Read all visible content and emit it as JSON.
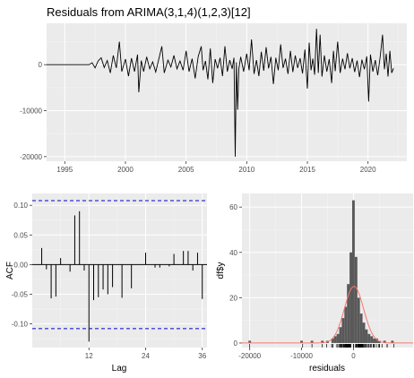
{
  "chart_data": [
    {
      "type": "line",
      "title": "Residuals from ARIMA(3,1,4)(1,2,3)[12]",
      "xlabel": "",
      "ylabel": "",
      "xlim": [
        1993.5,
        2023.2
      ],
      "ylim": [
        -21000,
        9000
      ],
      "x_ticks": [
        "1995",
        "2000",
        "2005",
        "2010",
        "2015",
        "2020"
      ],
      "y_ticks": [
        "-20000",
        "-10000",
        "0"
      ],
      "grid": true,
      "start_year": 1993.5,
      "points": [
        [
          1993.5,
          0
        ],
        [
          1997.0,
          0
        ],
        [
          1997.25,
          400
        ],
        [
          1997.5,
          -700
        ],
        [
          1997.75,
          800
        ],
        [
          1998.0,
          1500
        ],
        [
          1998.25,
          -600
        ],
        [
          1998.5,
          900
        ],
        [
          1998.75,
          -1800
        ],
        [
          1999.0,
          2000
        ],
        [
          1999.25,
          -700
        ],
        [
          1999.5,
          5000
        ],
        [
          1999.7,
          -1500
        ],
        [
          2000.0,
          1200
        ],
        [
          2000.25,
          -2500
        ],
        [
          2000.5,
          1400
        ],
        [
          2000.75,
          -1500
        ],
        [
          2001.0,
          2200
        ],
        [
          2001.1,
          -6000
        ],
        [
          2001.3,
          900
        ],
        [
          2001.5,
          -1500
        ],
        [
          2001.75,
          1700
        ],
        [
          2002.0,
          -900
        ],
        [
          2002.25,
          600
        ],
        [
          2002.5,
          -1600
        ],
        [
          2002.75,
          1200
        ],
        [
          2003.0,
          4000
        ],
        [
          2003.2,
          -1800
        ],
        [
          2003.5,
          1000
        ],
        [
          2003.75,
          -500
        ],
        [
          2004.0,
          2000
        ],
        [
          2004.25,
          -900
        ],
        [
          2004.5,
          800
        ],
        [
          2004.75,
          -1200
        ],
        [
          2005.0,
          3000
        ],
        [
          2005.25,
          -1500
        ],
        [
          2005.5,
          1300
        ],
        [
          2005.75,
          -3000
        ],
        [
          2006.0,
          1800
        ],
        [
          2006.25,
          4000
        ],
        [
          2006.4,
          -1200
        ],
        [
          2006.6,
          800
        ],
        [
          2006.8,
          -3200
        ],
        [
          2007.0,
          3500
        ],
        [
          2007.2,
          -4000
        ],
        [
          2007.4,
          1200
        ],
        [
          2007.6,
          -800
        ],
        [
          2007.8,
          1500
        ],
        [
          2008.0,
          -2500
        ],
        [
          2008.2,
          4000
        ],
        [
          2008.4,
          -1500
        ],
        [
          2008.6,
          1000
        ],
        [
          2008.8,
          -900
        ],
        [
          2008.95,
          1500
        ],
        [
          2009.05,
          -20000
        ],
        [
          2009.15,
          500
        ],
        [
          2009.25,
          -9800
        ],
        [
          2009.35,
          -1000
        ],
        [
          2009.5,
          1700
        ],
        [
          2009.75,
          -1500
        ],
        [
          2010.0,
          2400
        ],
        [
          2010.2,
          -1200
        ],
        [
          2010.4,
          5500
        ],
        [
          2010.6,
          -2000
        ],
        [
          2010.8,
          1000
        ],
        [
          2011.0,
          -2500
        ],
        [
          2011.2,
          2800
        ],
        [
          2011.4,
          -1300
        ],
        [
          2011.6,
          3800
        ],
        [
          2011.8,
          -800
        ],
        [
          2012.0,
          1700
        ],
        [
          2012.2,
          -4200
        ],
        [
          2012.4,
          1500
        ],
        [
          2012.6,
          -1200
        ],
        [
          2012.8,
          4400
        ],
        [
          2013.0,
          -700
        ],
        [
          2013.2,
          1300
        ],
        [
          2013.4,
          -2000
        ],
        [
          2013.6,
          3000
        ],
        [
          2013.8,
          -1600
        ],
        [
          2014.0,
          2000
        ],
        [
          2014.2,
          -700
        ],
        [
          2014.4,
          1400
        ],
        [
          2014.6,
          -1900
        ],
        [
          2014.8,
          3300
        ],
        [
          2015.0,
          -5200
        ],
        [
          2015.15,
          4800
        ],
        [
          2015.3,
          -1200
        ],
        [
          2015.45,
          1300
        ],
        [
          2015.6,
          -2200
        ],
        [
          2015.75,
          7800
        ],
        [
          2015.9,
          -1800
        ],
        [
          2016.05,
          6500
        ],
        [
          2016.2,
          -2600
        ],
        [
          2016.4,
          2000
        ],
        [
          2016.6,
          -1500
        ],
        [
          2016.8,
          1200
        ],
        [
          2017.0,
          -4000
        ],
        [
          2017.15,
          3000
        ],
        [
          2017.3,
          -1400
        ],
        [
          2017.5,
          5000
        ],
        [
          2017.7,
          -1800
        ],
        [
          2017.9,
          1300
        ],
        [
          2018.1,
          -1000
        ],
        [
          2018.3,
          2500
        ],
        [
          2018.5,
          -800
        ],
        [
          2018.7,
          1400
        ],
        [
          2018.9,
          -1600
        ],
        [
          2019.1,
          900
        ],
        [
          2019.3,
          -2700
        ],
        [
          2019.5,
          1100
        ],
        [
          2019.7,
          -1000
        ],
        [
          2019.9,
          1800
        ],
        [
          2020.05,
          -8000
        ],
        [
          2020.2,
          2200
        ],
        [
          2020.4,
          -1500
        ],
        [
          2020.6,
          1000
        ],
        [
          2020.8,
          -2300
        ],
        [
          2021.0,
          1600
        ],
        [
          2021.2,
          6500
        ],
        [
          2021.35,
          -1000
        ],
        [
          2021.5,
          2400
        ],
        [
          2021.65,
          -2600
        ],
        [
          2021.8,
          3000
        ],
        [
          2021.95,
          -1800
        ],
        [
          2022.1,
          -800
        ]
      ]
    },
    {
      "type": "bar",
      "xlabel": "Lag",
      "ylabel": "ACF",
      "xlim": [
        0,
        37
      ],
      "ylim": [
        -0.14,
        0.12
      ],
      "x_ticks": [
        "12",
        "24",
        "36"
      ],
      "y_ticks": [
        "-0.10",
        "-0.05",
        "0.00",
        "0.05",
        "0.10"
      ],
      "confidence_bound": 0.108,
      "lags": [
        1,
        2,
        3,
        4,
        5,
        6,
        7,
        8,
        9,
        10,
        11,
        12,
        13,
        14,
        15,
        16,
        17,
        18,
        19,
        20,
        21,
        22,
        23,
        24,
        25,
        26,
        27,
        28,
        29,
        30,
        31,
        32,
        33,
        34,
        35,
        36
      ],
      "values": [
        0.0,
        0.028,
        -0.008,
        -0.057,
        -0.054,
        0.011,
        0.0,
        -0.012,
        0.083,
        0.09,
        -0.01,
        -0.13,
        -0.06,
        -0.055,
        -0.042,
        -0.05,
        -0.038,
        0.0,
        -0.056,
        0.0,
        -0.04,
        0.0,
        0.0,
        0.02,
        0.0,
        -0.005,
        -0.005,
        0.0,
        -0.003,
        0.018,
        0.0,
        0.023,
        0.023,
        -0.01,
        0.02,
        -0.058
      ]
    },
    {
      "type": "histogram",
      "xlabel": "residuals",
      "ylabel": "df$y",
      "xlim": [
        -21500,
        11500
      ],
      "ylim": [
        -2,
        66
      ],
      "x_ticks": [
        "-20000",
        "-10000",
        "0"
      ],
      "y_ticks": [
        "0",
        "20",
        "40",
        "60"
      ],
      "bin_width": 500,
      "bins": [
        {
          "x": -20000,
          "count": 1
        },
        {
          "x": -10000,
          "count": 1
        },
        {
          "x": -8000,
          "count": 1
        },
        {
          "x": -6000,
          "count": 1
        },
        {
          "x": -5000,
          "count": 1
        },
        {
          "x": -4000,
          "count": 2
        },
        {
          "x": -3500,
          "count": 3
        },
        {
          "x": -3000,
          "count": 4
        },
        {
          "x": -2500,
          "count": 7
        },
        {
          "x": -2000,
          "count": 11
        },
        {
          "x": -1500,
          "count": 16
        },
        {
          "x": -1000,
          "count": 26
        },
        {
          "x": -500,
          "count": 40
        },
        {
          "x": 0,
          "count": 63
        },
        {
          "x": 500,
          "count": 38
        },
        {
          "x": 1000,
          "count": 20
        },
        {
          "x": 1500,
          "count": 13
        },
        {
          "x": 2000,
          "count": 9
        },
        {
          "x": 2500,
          "count": 6
        },
        {
          "x": 3000,
          "count": 4
        },
        {
          "x": 3500,
          "count": 3
        },
        {
          "x": 4000,
          "count": 2
        },
        {
          "x": 4500,
          "count": 2
        },
        {
          "x": 5000,
          "count": 1
        },
        {
          "x": 6000,
          "count": 1
        },
        {
          "x": 7500,
          "count": 1
        }
      ],
      "normal_curve": {
        "mean": 100,
        "sd": 1850,
        "peak": 25
      }
    }
  ]
}
